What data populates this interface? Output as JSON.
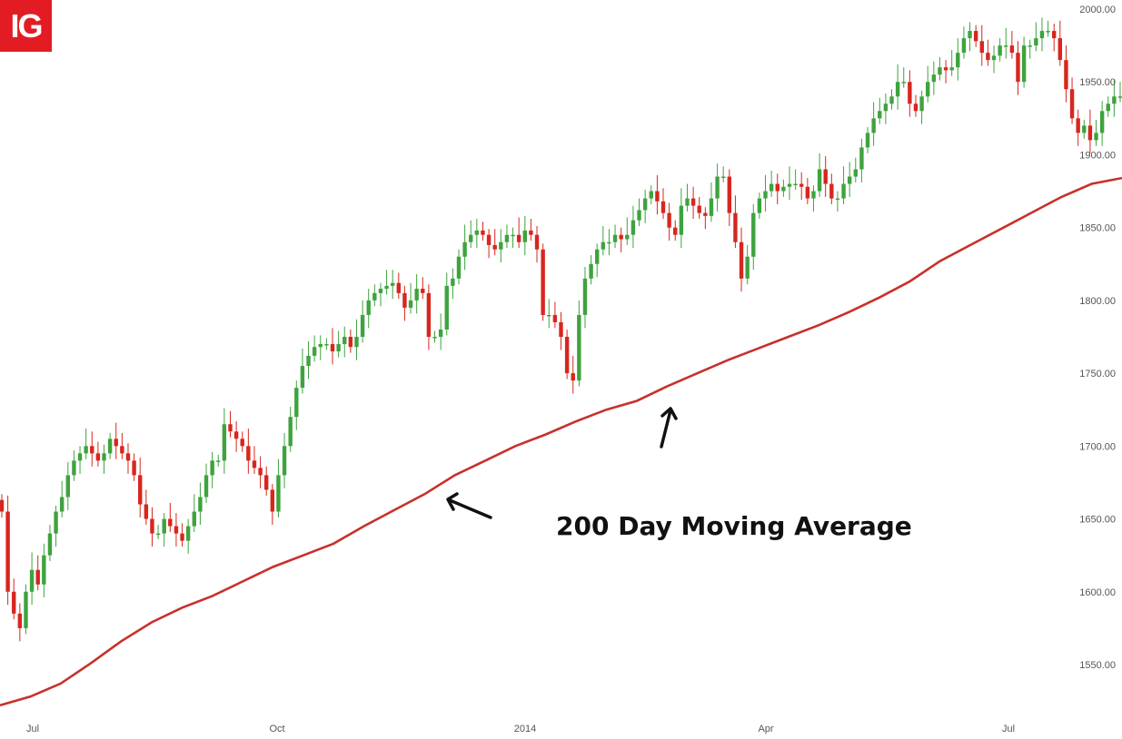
{
  "logo": {
    "text": "IG",
    "color": "#e31b23"
  },
  "annotation": {
    "text": "200 Day Moving Average"
  },
  "chart_data": {
    "type": "candlestick",
    "title": "",
    "xlabel": "",
    "ylabel": "",
    "ylim": [
      1520,
      2005
    ],
    "grid": false,
    "y_ticks": [
      "1550.00",
      "1600.00",
      "1650.00",
      "1700.00",
      "1750.00",
      "1800.00",
      "1850.00",
      "1900.00",
      "1950.00",
      "2000.00"
    ],
    "x_ticks": [
      "Jul",
      "Oct",
      "2014",
      "Apr",
      "Jul"
    ],
    "colors": {
      "up": "#3ea33e",
      "down": "#d7261e",
      "moving_average": "#c8302a"
    },
    "price_path": {
      "description_free_values": true,
      "closes": [
        1655,
        1600,
        1585,
        1575,
        1600,
        1615,
        1605,
        1625,
        1640,
        1655,
        1665,
        1680,
        1690,
        1695,
        1700,
        1695,
        1690,
        1695,
        1705,
        1700,
        1695,
        1690,
        1680,
        1660,
        1650,
        1640,
        1640,
        1650,
        1645,
        1640,
        1635,
        1645,
        1655,
        1665,
        1680,
        1690,
        1690,
        1715,
        1710,
        1705,
        1700,
        1690,
        1685,
        1680,
        1670,
        1655,
        1680,
        1700,
        1720,
        1740,
        1755,
        1762,
        1768,
        1770,
        1770,
        1765,
        1770,
        1775,
        1768,
        1775,
        1790,
        1800,
        1805,
        1808,
        1810,
        1812,
        1805,
        1795,
        1800,
        1808,
        1805,
        1775,
        1775,
        1780,
        1810,
        1815,
        1830,
        1840,
        1845,
        1848,
        1845,
        1838,
        1835,
        1840,
        1845,
        1845,
        1840,
        1848,
        1845,
        1835,
        1790,
        1790,
        1785,
        1775,
        1750,
        1745,
        1790,
        1815,
        1825,
        1835,
        1840,
        1840,
        1845,
        1842,
        1845,
        1855,
        1862,
        1870,
        1875,
        1868,
        1860,
        1850,
        1845,
        1865,
        1870,
        1865,
        1860,
        1858,
        1870,
        1885,
        1885,
        1860,
        1840,
        1815,
        1830,
        1860,
        1870,
        1875,
        1880,
        1875,
        1878,
        1880,
        1880,
        1878,
        1870,
        1875,
        1890,
        1880,
        1870,
        1870,
        1880,
        1885,
        1890,
        1905,
        1915,
        1925,
        1930,
        1935,
        1940,
        1950,
        1950,
        1935,
        1930,
        1940,
        1950,
        1955,
        1960,
        1958,
        1960,
        1970,
        1980,
        1985,
        1978,
        1970,
        1965,
        1968,
        1975,
        1975,
        1970,
        1950,
        1975,
        1975,
        1980,
        1985,
        1985,
        1980,
        1965,
        1945,
        1925,
        1915,
        1920,
        1910,
        1915,
        1930,
        1935,
        1940,
        1940
      ]
    },
    "moving_average": {
      "name": "200 Day Moving Average",
      "values": [
        1522,
        1528,
        1537,
        1551,
        1566,
        1579,
        1589,
        1597,
        1607,
        1617,
        1625,
        1633,
        1645,
        1656,
        1667,
        1680,
        1690,
        1700,
        1708,
        1717,
        1725,
        1731,
        1741,
        1750,
        1759,
        1767,
        1775,
        1783,
        1792,
        1802,
        1813,
        1827,
        1838,
        1849,
        1860,
        1871,
        1880,
        1884
      ]
    }
  }
}
